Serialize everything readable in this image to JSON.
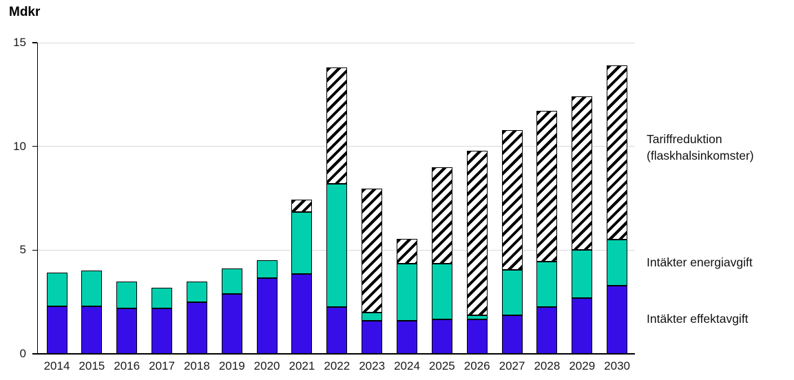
{
  "chart_data": {
    "type": "bar",
    "stacked": true,
    "title": "Mdkr",
    "ylabel": "Mdkr",
    "xlabel": "",
    "ylim": [
      0,
      15
    ],
    "yticks": [
      0,
      5,
      10,
      15
    ],
    "grid": true,
    "legend_position": "right",
    "categories": [
      "2014",
      "2015",
      "2016",
      "2017",
      "2018",
      "2019",
      "2020",
      "2021",
      "2022",
      "2023",
      "2024",
      "2025",
      "2026",
      "2027",
      "2028",
      "2029",
      "2030"
    ],
    "series": [
      {
        "key": "effektavgift",
        "name": "Intäkter effektavgift",
        "style": "solid",
        "color": "#380EE8",
        "values": [
          2.3,
          2.3,
          2.2,
          2.2,
          2.5,
          2.9,
          3.65,
          3.85,
          2.25,
          1.6,
          1.6,
          1.65,
          1.65,
          1.85,
          2.25,
          2.7,
          3.3
        ]
      },
      {
        "key": "energiavgift",
        "name": "Intäkter energiavgift",
        "style": "solid",
        "color": "#02CFAE",
        "values": [
          1.6,
          1.7,
          1.3,
          1.0,
          1.0,
          1.2,
          0.85,
          3.0,
          5.95,
          0.4,
          2.75,
          2.7,
          0.2,
          2.2,
          2.2,
          2.3,
          2.2
        ]
      },
      {
        "key": "tariffreduktion",
        "name": "Tariffreduktion (flaskhalsinkomster)",
        "style": "hatched",
        "hatch_foreground": "#000000",
        "hatch_background": "#ffffff",
        "values": [
          0,
          0,
          0,
          0,
          0,
          0,
          0,
          0.6,
          5.6,
          5.95,
          1.2,
          4.65,
          7.95,
          6.75,
          7.25,
          7.4,
          8.4
        ]
      }
    ]
  }
}
